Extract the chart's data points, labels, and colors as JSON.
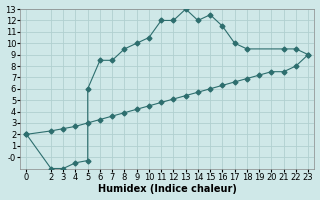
{
  "title": "",
  "xlabel": "Humidex (Indice chaleur)",
  "ylabel": "",
  "bg_color": "#cfe8e8",
  "grid_color": "#b0d0d0",
  "line_color": "#2d6e6e",
  "xlim": [
    -0.5,
    23.5
  ],
  "ylim": [
    -1,
    13
  ],
  "xticks": [
    0,
    2,
    3,
    4,
    5,
    6,
    7,
    8,
    9,
    10,
    11,
    12,
    13,
    14,
    15,
    16,
    17,
    18,
    19,
    20,
    21,
    22,
    23
  ],
  "yticks": [
    0,
    1,
    2,
    3,
    4,
    5,
    6,
    7,
    8,
    9,
    10,
    11,
    12,
    13
  ],
  "curve1_x": [
    0,
    2,
    3,
    4,
    5,
    5,
    6,
    7,
    8,
    9,
    10,
    11,
    12,
    13,
    14,
    15,
    16,
    17,
    18,
    21,
    22,
    23
  ],
  "curve1_y": [
    2,
    -1,
    -1,
    -0.5,
    -0.3,
    6,
    8.5,
    8.5,
    9.5,
    10,
    10.5,
    12,
    12,
    13,
    12,
    12.5,
    11.5,
    10,
    9.5,
    9.5,
    9.5,
    9
  ],
  "curve2_x": [
    0,
    2,
    3,
    4,
    5,
    6,
    7,
    8,
    9,
    10,
    11,
    12,
    13,
    14,
    15,
    16,
    17,
    18,
    19,
    20,
    21,
    22,
    23
  ],
  "curve2_y": [
    2,
    2.3,
    2.5,
    2.7,
    3.0,
    3.3,
    3.6,
    3.9,
    4.2,
    4.5,
    4.8,
    5.1,
    5.4,
    5.7,
    6.0,
    6.3,
    6.6,
    6.9,
    7.2,
    7.5,
    7.5,
    8.0,
    9
  ],
  "fontsize_xlabel": 7,
  "fontsize_tick": 6,
  "markersize": 2.5
}
